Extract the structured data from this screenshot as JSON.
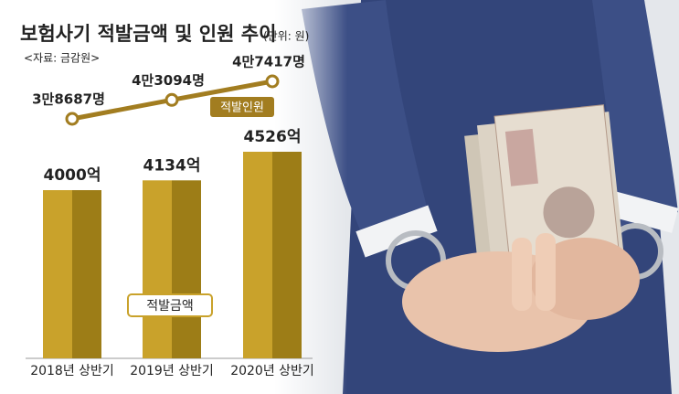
{
  "chart_data": {
    "type": "bar",
    "title": "보험사기 적발금액 및 인원 추이",
    "subtitle": "(단위: 원)",
    "source": "<자료: 금감원>",
    "categories": [
      "2018년 상반기",
      "2019년 상반기",
      "2020년 상반기"
    ],
    "series": [
      {
        "name": "적발금액",
        "type": "bar",
        "color": "#c9a22b",
        "shade": "#9d7d17",
        "values": [
          4000,
          4134,
          4526
        ],
        "value_labels": [
          "4000억",
          "4134억",
          "4526억"
        ]
      },
      {
        "name": "적발인원",
        "type": "line",
        "color": "#a27d20",
        "values": [
          38687,
          43094,
          47417
        ],
        "value_labels": [
          "3만8687명",
          "4만3094명",
          "4만7417명"
        ]
      }
    ]
  }
}
